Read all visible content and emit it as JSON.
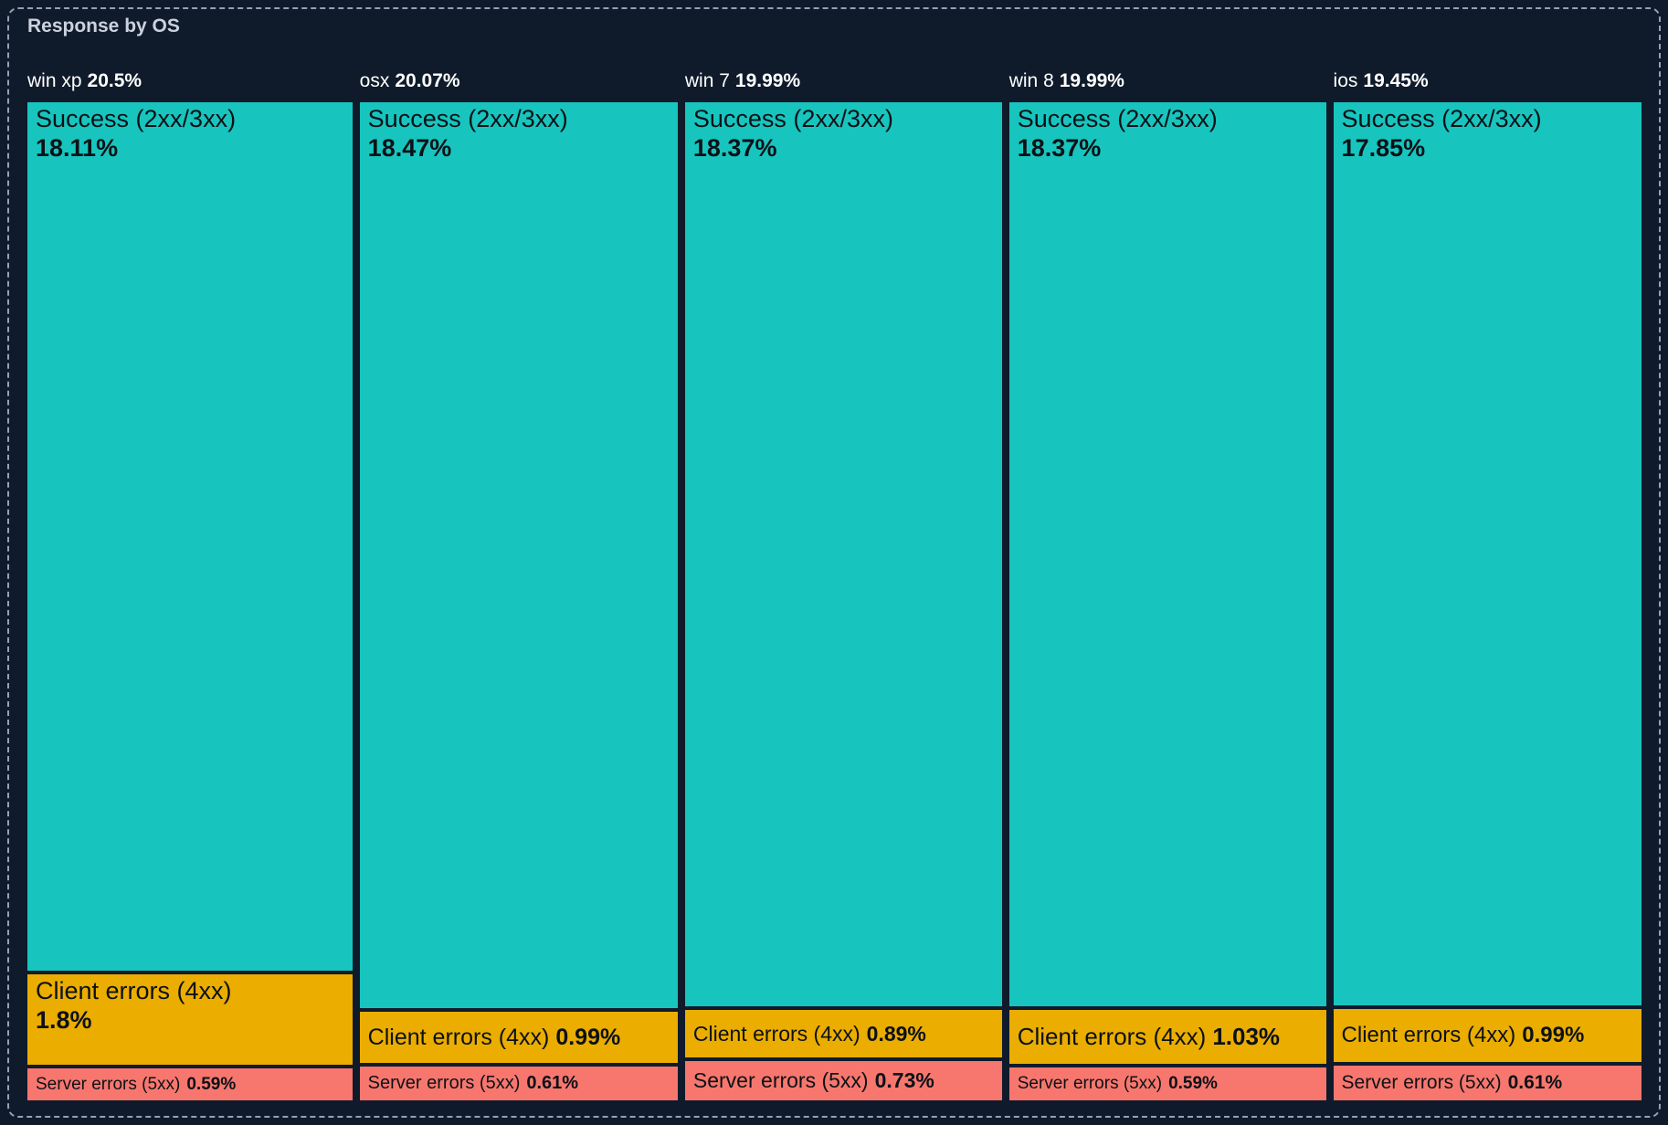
{
  "panel": {
    "title": "Response by OS"
  },
  "chart_data": {
    "type": "treemap",
    "title": "Response by OS",
    "unit": "%",
    "legend": "none",
    "layout": "one column per OS; segment heights proportional to percentage share",
    "colors": {
      "background": "#0f1b2b",
      "panel_border": "#94a2b4",
      "title_text": "#cbd2dd",
      "header_text": "#ffffff",
      "segment_text": "#0c1117",
      "success": "#17c5be",
      "client_errors": "#eaad00",
      "server_errors": "#f7776e"
    },
    "groups": [
      {
        "name": "win xp",
        "share_pct": 20.5,
        "share_label": "20.5%",
        "segments": [
          {
            "label": "Success (2xx/3xx)",
            "pct": 18.11,
            "value_label": "18.11%"
          },
          {
            "label": "Client errors (4xx)",
            "pct": 1.8,
            "value_label": "1.8%"
          },
          {
            "label": "Server errors (5xx)",
            "pct": 0.59,
            "value_label": "0.59%"
          }
        ]
      },
      {
        "name": "osx",
        "share_pct": 20.07,
        "share_label": "20.07%",
        "segments": [
          {
            "label": "Success (2xx/3xx)",
            "pct": 18.47,
            "value_label": "18.47%"
          },
          {
            "label": "Client errors (4xx)",
            "pct": 0.99,
            "value_label": "0.99%"
          },
          {
            "label": "Server errors (5xx)",
            "pct": 0.61,
            "value_label": "0.61%"
          }
        ]
      },
      {
        "name": "win 7",
        "share_pct": 19.99,
        "share_label": "19.99%",
        "segments": [
          {
            "label": "Success (2xx/3xx)",
            "pct": 18.37,
            "value_label": "18.37%"
          },
          {
            "label": "Client errors (4xx)",
            "pct": 0.89,
            "value_label": "0.89%"
          },
          {
            "label": "Server errors (5xx)",
            "pct": 0.73,
            "value_label": "0.73%"
          }
        ]
      },
      {
        "name": "win 8",
        "share_pct": 19.99,
        "share_label": "19.99%",
        "segments": [
          {
            "label": "Success (2xx/3xx)",
            "pct": 18.37,
            "value_label": "18.37%"
          },
          {
            "label": "Client errors (4xx)",
            "pct": 1.03,
            "value_label": "1.03%"
          },
          {
            "label": "Server errors (5xx)",
            "pct": 0.59,
            "value_label": "0.59%"
          }
        ]
      },
      {
        "name": "ios",
        "share_pct": 19.45,
        "share_label": "19.45%",
        "segments": [
          {
            "label": "Success (2xx/3xx)",
            "pct": 17.85,
            "value_label": "17.85%"
          },
          {
            "label": "Client errors (4xx)",
            "pct": 0.99,
            "value_label": "0.99%"
          },
          {
            "label": "Server errors (5xx)",
            "pct": 0.61,
            "value_label": "0.61%"
          }
        ]
      }
    ]
  }
}
